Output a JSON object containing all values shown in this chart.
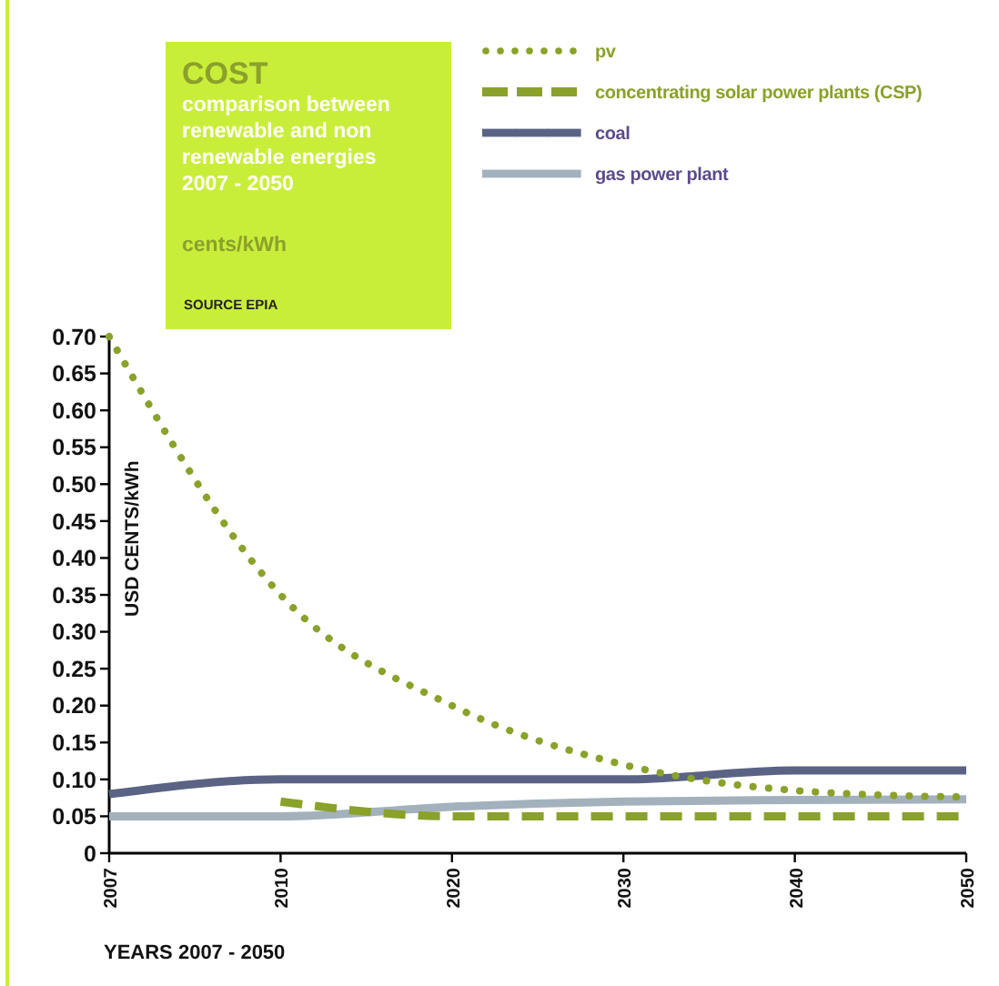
{
  "chart_data": {
    "type": "line",
    "title": "COST",
    "subtitle": "comparison between renewable and non renewable energies 2007 - 2050",
    "annotations": [
      "cents/kWh",
      "SOURCE EPIA"
    ],
    "ylabel": "USD CENTS/kWh",
    "xlabel": "YEARS 2007 - 2050",
    "categories": [
      "2007",
      "2010",
      "2020",
      "2030",
      "2040",
      "2050"
    ],
    "series": [
      {
        "name": "pv",
        "color": "#8aa12a",
        "line_style": "dotted",
        "values": [
          0.7,
          0.35,
          0.2,
          0.12,
          0.085,
          0.076
        ]
      },
      {
        "name": "concentrating solar power plants (CSP)",
        "color": "#8aa12a",
        "line_style": "dashed",
        "values": [
          null,
          0.07,
          0.05,
          0.05,
          0.05,
          0.05
        ]
      },
      {
        "name": "coal",
        "color": "#5a6384",
        "line_style": "solid",
        "values": [
          0.08,
          0.1,
          0.1,
          0.1,
          0.112,
          0.112
        ]
      },
      {
        "name": "gas power plant",
        "color": "#a3b1bd",
        "line_style": "solid",
        "values": [
          0.05,
          0.05,
          0.063,
          0.07,
          0.072,
          0.073
        ]
      }
    ],
    "ylim": [
      0,
      0.7
    ],
    "yticks": [
      0,
      {
        "value": 0.05,
        "label": "0.05"
      },
      {
        "value": 0.1,
        "label": "0.10"
      },
      {
        "value": 0.15,
        "label": "0.15"
      },
      {
        "value": 0.2,
        "label": "0.20"
      },
      {
        "value": 0.25,
        "label": "0.25"
      },
      {
        "value": 0.3,
        "label": "0.30"
      },
      {
        "value": 0.35,
        "label": "0.35"
      },
      {
        "value": 0.4,
        "label": "0.40"
      },
      {
        "value": 0.45,
        "label": "0.45"
      },
      {
        "value": 0.5,
        "label": "0.50"
      },
      {
        "value": 0.55,
        "label": "0.55"
      },
      {
        "value": 0.6,
        "label": "0.60"
      },
      {
        "value": 0.65,
        "label": "0.65"
      },
      {
        "value": 0.7,
        "label": "0.70"
      }
    ],
    "grid": false,
    "legend": "top right"
  }
}
